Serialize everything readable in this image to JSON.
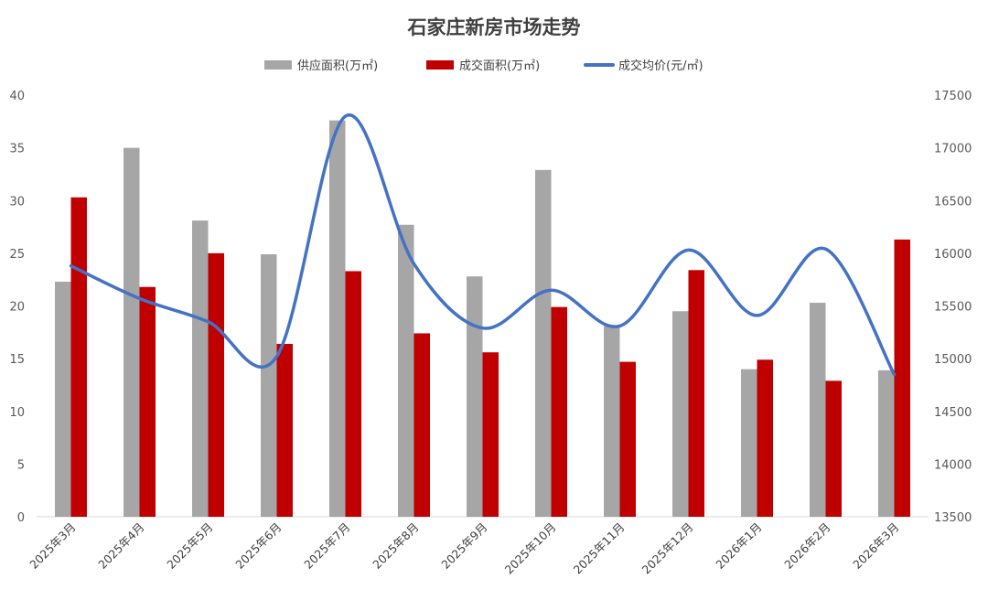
{
  "chart_data": {
    "type": "bar+line",
    "title": "石家庄新房市场走势",
    "categories": [
      "2025年3月",
      "2025年4月",
      "2025年5月",
      "2025年6月",
      "2025年7月",
      "2025年8月",
      "2025年9月",
      "2025年10月",
      "2025年11月",
      "2025年12月",
      "2026年1月",
      "2026年2月",
      "2026年3月"
    ],
    "series": [
      {
        "name": "供应面积(万㎡)",
        "type": "bar",
        "axis": "left",
        "color": "#a6a6a6",
        "values": [
          22.3,
          35.0,
          28.1,
          24.9,
          37.6,
          27.7,
          22.8,
          32.9,
          18.1,
          19.5,
          14.0,
          20.3,
          13.9
        ]
      },
      {
        "name": "成交面积(万㎡)",
        "type": "bar",
        "axis": "left",
        "color": "#c00000",
        "values": [
          30.3,
          21.8,
          25.0,
          16.4,
          23.3,
          17.4,
          15.6,
          19.9,
          14.7,
          23.4,
          14.9,
          12.9,
          26.3
        ]
      },
      {
        "name": "成交均价(元/㎡)",
        "type": "line",
        "axis": "right",
        "color": "#4472c4",
        "values": [
          15880,
          15570,
          15350,
          15020,
          17300,
          15900,
          15290,
          15650,
          15310,
          16030,
          15410,
          16040,
          14850
        ]
      }
    ],
    "left_axis": {
      "min": 0,
      "max": 40,
      "ticks": [
        "0",
        "5",
        "10",
        "15",
        "20",
        "25",
        "30",
        "35",
        "40"
      ]
    },
    "right_axis": {
      "min": 13500,
      "max": 17500,
      "ticks": [
        "13500",
        "14000",
        "14500",
        "15000",
        "15500",
        "16000",
        "16500",
        "17000",
        "17500"
      ]
    },
    "legend_position": "top",
    "grid": false
  }
}
